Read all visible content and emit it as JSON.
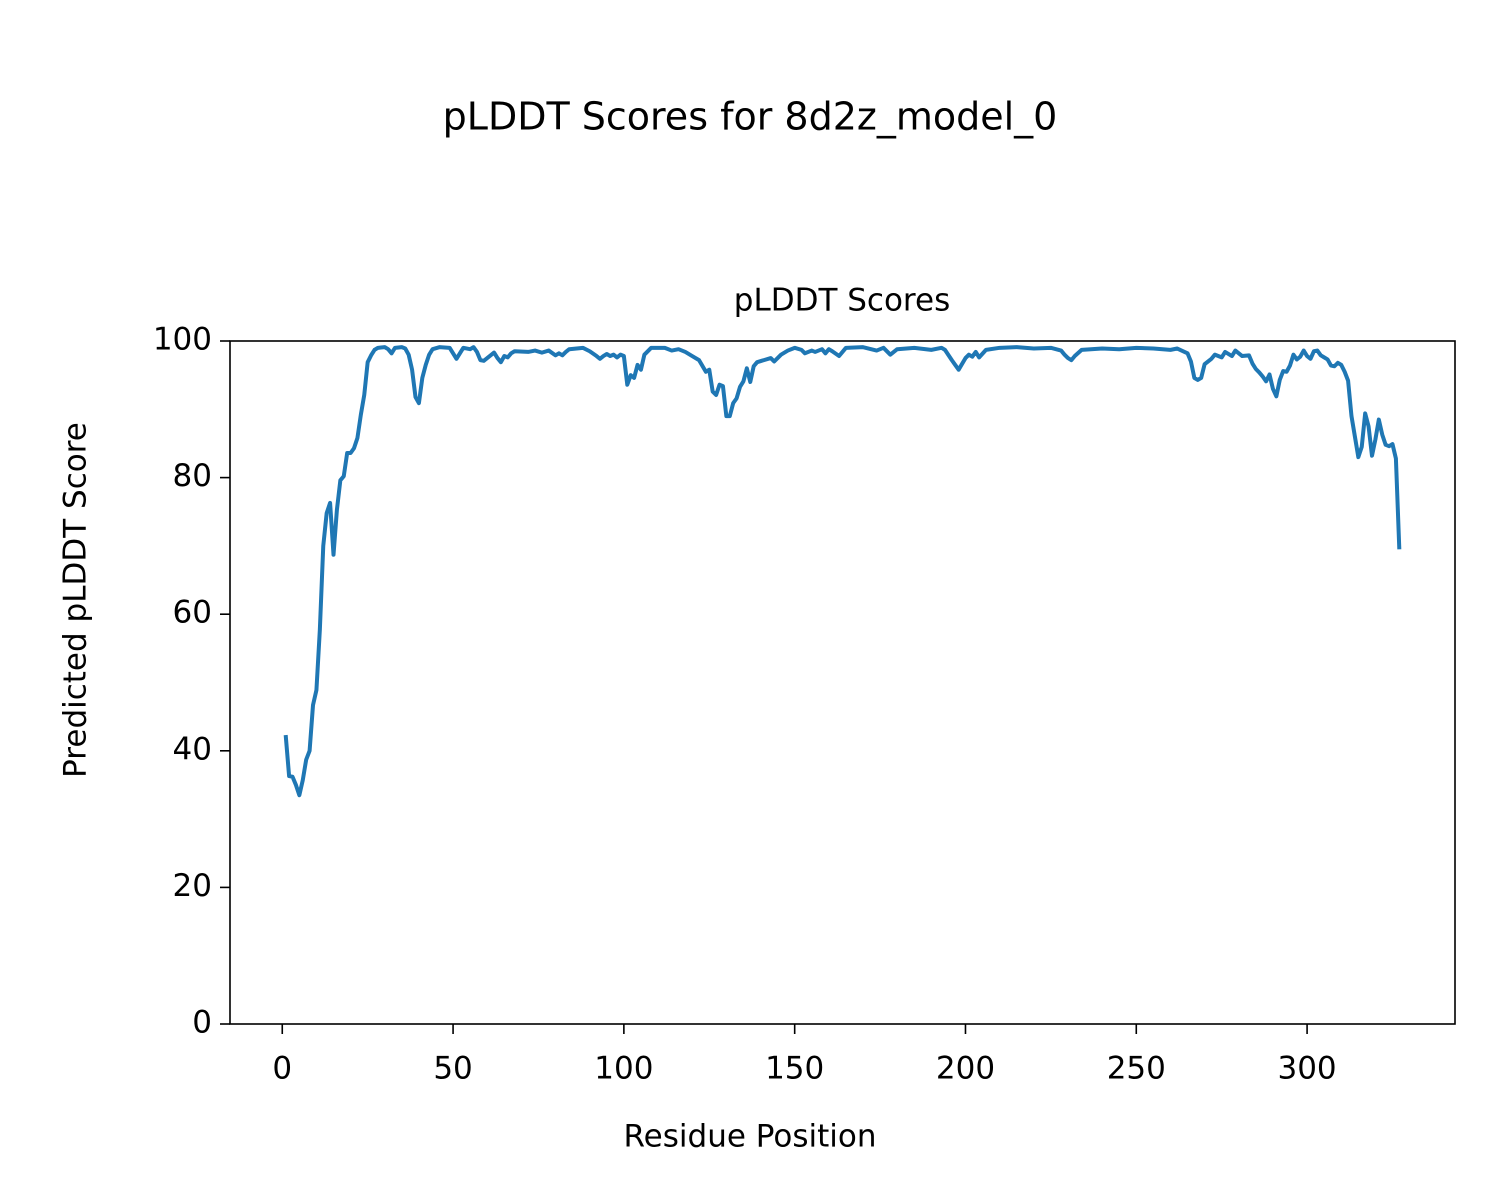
{
  "chart_data": {
    "type": "line",
    "title": "pLDDT Scores for 8d2z_model_0",
    "subtitle": "pLDDT Scores",
    "x_label": "Residue Position",
    "y_label": "Predicted pLDDT Score",
    "color": "#1f77b4",
    "grid": false,
    "xlim": [
      -15.3,
      343.3
    ],
    "ylim": [
      0,
      100
    ],
    "xticks": [
      0,
      50,
      100,
      150,
      200,
      250,
      300
    ],
    "yticks": [
      0,
      20,
      40,
      60,
      80,
      100
    ],
    "x": [
      1,
      2,
      3,
      4,
      5,
      6,
      7,
      8,
      9,
      10,
      11,
      12,
      13,
      14,
      15,
      16,
      17,
      18,
      19,
      20,
      21,
      22,
      23,
      24,
      25,
      26,
      27,
      28,
      30,
      31,
      32,
      33,
      35,
      36,
      37,
      38,
      39,
      40,
      41,
      42,
      43,
      44,
      46,
      49,
      51,
      52,
      53,
      55,
      56,
      57,
      58,
      59,
      61,
      62,
      63,
      64,
      65,
      66,
      67,
      68,
      72,
      74,
      76,
      78,
      80,
      81,
      82,
      83,
      84,
      88,
      90,
      92,
      93,
      94,
      95,
      96,
      97,
      98,
      99,
      100,
      101,
      102,
      103,
      104,
      105,
      106,
      108,
      112,
      114,
      116,
      118,
      120,
      122,
      124,
      125,
      126,
      127,
      128,
      129,
      130,
      131,
      132,
      133,
      134,
      135,
      136,
      137,
      138,
      139,
      141,
      143,
      144,
      146,
      148,
      150,
      152,
      153,
      155,
      156,
      158,
      159,
      160,
      161,
      163,
      165,
      170,
      174,
      176,
      178,
      180,
      185,
      190,
      193,
      194,
      196,
      197,
      198,
      200,
      201,
      202,
      203,
      204,
      206,
      210,
      215,
      220,
      225,
      228,
      229,
      230,
      231,
      232,
      234,
      240,
      245,
      250,
      255,
      260,
      262,
      265,
      266,
      267,
      268,
      269,
      270,
      272,
      273,
      275,
      276,
      278,
      279,
      281,
      283,
      284,
      285,
      286,
      287,
      288,
      289,
      290,
      291,
      292,
      293,
      294,
      295,
      296,
      297,
      298,
      299,
      300,
      301,
      302,
      303,
      304,
      305,
      306,
      307,
      308,
      309,
      310,
      311,
      312,
      313,
      314,
      315,
      316,
      317,
      318,
      319,
      320,
      321,
      322,
      323,
      324,
      325,
      326,
      327
    ],
    "values": [
      42.3,
      36.3,
      36.2,
      35,
      33.5,
      35.7,
      38.7,
      40,
      46.7,
      48.9,
      57.7,
      70,
      74.8,
      76.3,
      68.7,
      75.3,
      79.6,
      80.2,
      83.6,
      83.6,
      84.3,
      85.8,
      89.2,
      92.1,
      96.9,
      97.9,
      98.7,
      99,
      99.1,
      98.8,
      98.2,
      99,
      99.1,
      98.9,
      98,
      95.8,
      91.8,
      90.9,
      94.6,
      96.5,
      98,
      98.8,
      99.1,
      99,
      97.4,
      98.2,
      99,
      98.8,
      99.1,
      98.4,
      97.2,
      97.1,
      97.9,
      98.3,
      97.5,
      96.9,
      97.8,
      97.6,
      98.2,
      98.5,
      98.4,
      98.6,
      98.3,
      98.6,
      97.9,
      98.2,
      97.9,
      98.4,
      98.8,
      99,
      98.5,
      97.8,
      97.4,
      97.8,
      98.1,
      97.8,
      98,
      97.6,
      98,
      97.8,
      93.6,
      95,
      94.6,
      96.5,
      95.8,
      98,
      99,
      99,
      98.6,
      98.8,
      98.4,
      97.8,
      97.2,
      95.5,
      95.8,
      92.6,
      92.1,
      93.6,
      93.4,
      89,
      89,
      90.9,
      91.6,
      93.3,
      94.1,
      96,
      94,
      96.3,
      96.9,
      97.2,
      97.5,
      97,
      98,
      98.6,
      99,
      98.7,
      98.2,
      98.6,
      98.4,
      98.8,
      98.2,
      98.8,
      98.5,
      97.8,
      99,
      99.1,
      98.6,
      99,
      98,
      98.8,
      99,
      98.7,
      99,
      98.7,
      97.2,
      96.5,
      95.8,
      97.5,
      98,
      97.7,
      98.4,
      97.6,
      98.7,
      99,
      99.1,
      98.9,
      99,
      98.6,
      98,
      97.5,
      97.2,
      97.8,
      98.7,
      98.9,
      98.8,
      99,
      98.9,
      98.7,
      98.9,
      98.2,
      97,
      94.6,
      94.3,
      94.6,
      96.6,
      97.4,
      98,
      97.6,
      98.4,
      97.8,
      98.6,
      97.8,
      97.9,
      96.7,
      95.9,
      95.4,
      94.8,
      94.1,
      95.1,
      93,
      91.9,
      94.3,
      95.6,
      95.5,
      96.4,
      98,
      97.3,
      97.7,
      98.6,
      97.8,
      97.4,
      98.5,
      98.6,
      97.9,
      97.6,
      97.3,
      96.4,
      96.3,
      96.8,
      96.5,
      95.5,
      94.2,
      89,
      86,
      83,
      84.5,
      89.4,
      87.5,
      83.2,
      85.6,
      88.5,
      86.3,
      84.8,
      84.6,
      84.9,
      82.8,
      69.5
    ]
  }
}
